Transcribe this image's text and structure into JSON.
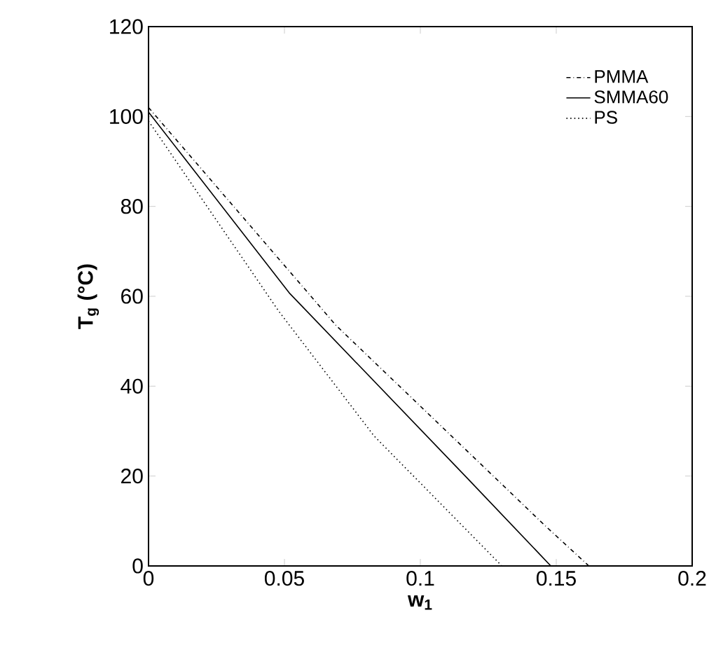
{
  "chart_data": {
    "type": "line",
    "xlabel": "w$_{1}$",
    "ylabel": "T$_{g}$ (°C)",
    "xlim": [
      0,
      0.2
    ],
    "ylim": [
      0,
      120
    ],
    "xticks": [
      0,
      0.05,
      0.1,
      0.15,
      0.2
    ],
    "yticks": [
      0,
      20,
      40,
      60,
      80,
      100,
      120
    ],
    "legend": "top right",
    "grid": false,
    "series": [
      {
        "name": "PMMA",
        "color": "#000000",
        "line_style": "dashed",
        "x": [
          0,
          0.069,
          0.146,
          0.162
        ],
        "values": [
          102,
          53.5,
          8.9,
          0
        ]
      },
      {
        "name": "SMMA60",
        "color": "#000000",
        "line_style": "solid",
        "x": [
          0,
          0.052,
          0.117,
          0.148
        ],
        "values": [
          101,
          60.6,
          19.7,
          0
        ]
      },
      {
        "name": "PS",
        "color": "#000000",
        "line_style": "dotted",
        "x": [
          0,
          0.048,
          0.083,
          0.13
        ],
        "values": [
          99,
          56.6,
          28.9,
          0
        ]
      }
    ]
  }
}
